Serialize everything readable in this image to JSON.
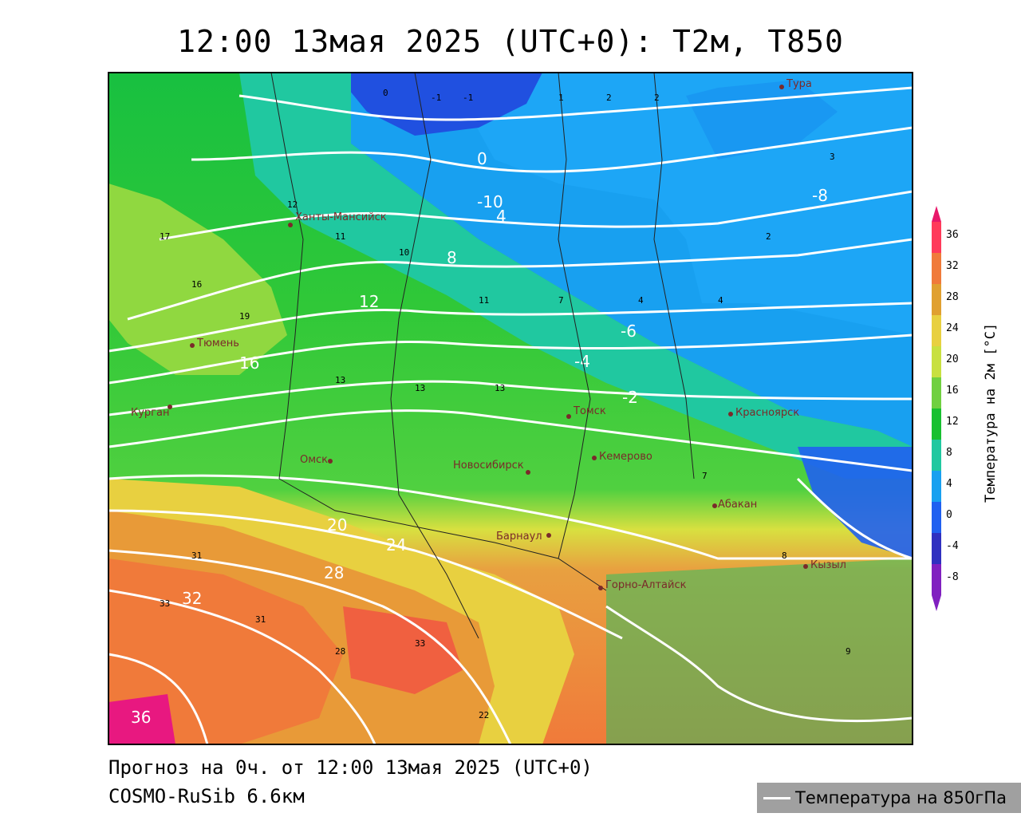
{
  "title": "12:00 13мая 2025 (UTC+0): T2м, T850",
  "footer": {
    "forecast": "Прогноз на 0ч. от 12:00 13мая 2025 (UTC+0)",
    "model": "COSMO-RuSib 6.6км"
  },
  "legend": {
    "isoline_label": "Температура на 850гПа",
    "isoline_color": "#ffffff"
  },
  "colorbar": {
    "label": "Температура на 2м [°C]",
    "ticks": [
      "36",
      "32",
      "28",
      "24",
      "20",
      "16",
      "12",
      "8",
      "4",
      "0",
      "-4",
      "-8"
    ],
    "colors": [
      "#ff3a5a",
      "#f07a3a",
      "#e0a030",
      "#e8d040",
      "#c8e040",
      "#70d040",
      "#18c030",
      "#20c8a0",
      "#18a0f0",
      "#2060f0",
      "#3030c0",
      "#8020c0"
    ]
  },
  "cities": [
    {
      "name": "Тура"
    },
    {
      "name": "Ханты-Мансийск"
    },
    {
      "name": "Тюмень"
    },
    {
      "name": "Курган"
    },
    {
      "name": "Омск"
    },
    {
      "name": "Томск"
    },
    {
      "name": "Красноярск"
    },
    {
      "name": "Кемерово"
    },
    {
      "name": "Новосибирск"
    },
    {
      "name": "Абакан"
    },
    {
      "name": "Барнаул"
    },
    {
      "name": "Горно-Алтайск"
    },
    {
      "name": "Кызыл"
    }
  ],
  "isolines": [
    "0",
    "-10",
    "4",
    "-8",
    "8",
    "-4",
    "12",
    "-6",
    "-2",
    "16",
    "20",
    "24",
    "28",
    "32",
    "36"
  ]
}
